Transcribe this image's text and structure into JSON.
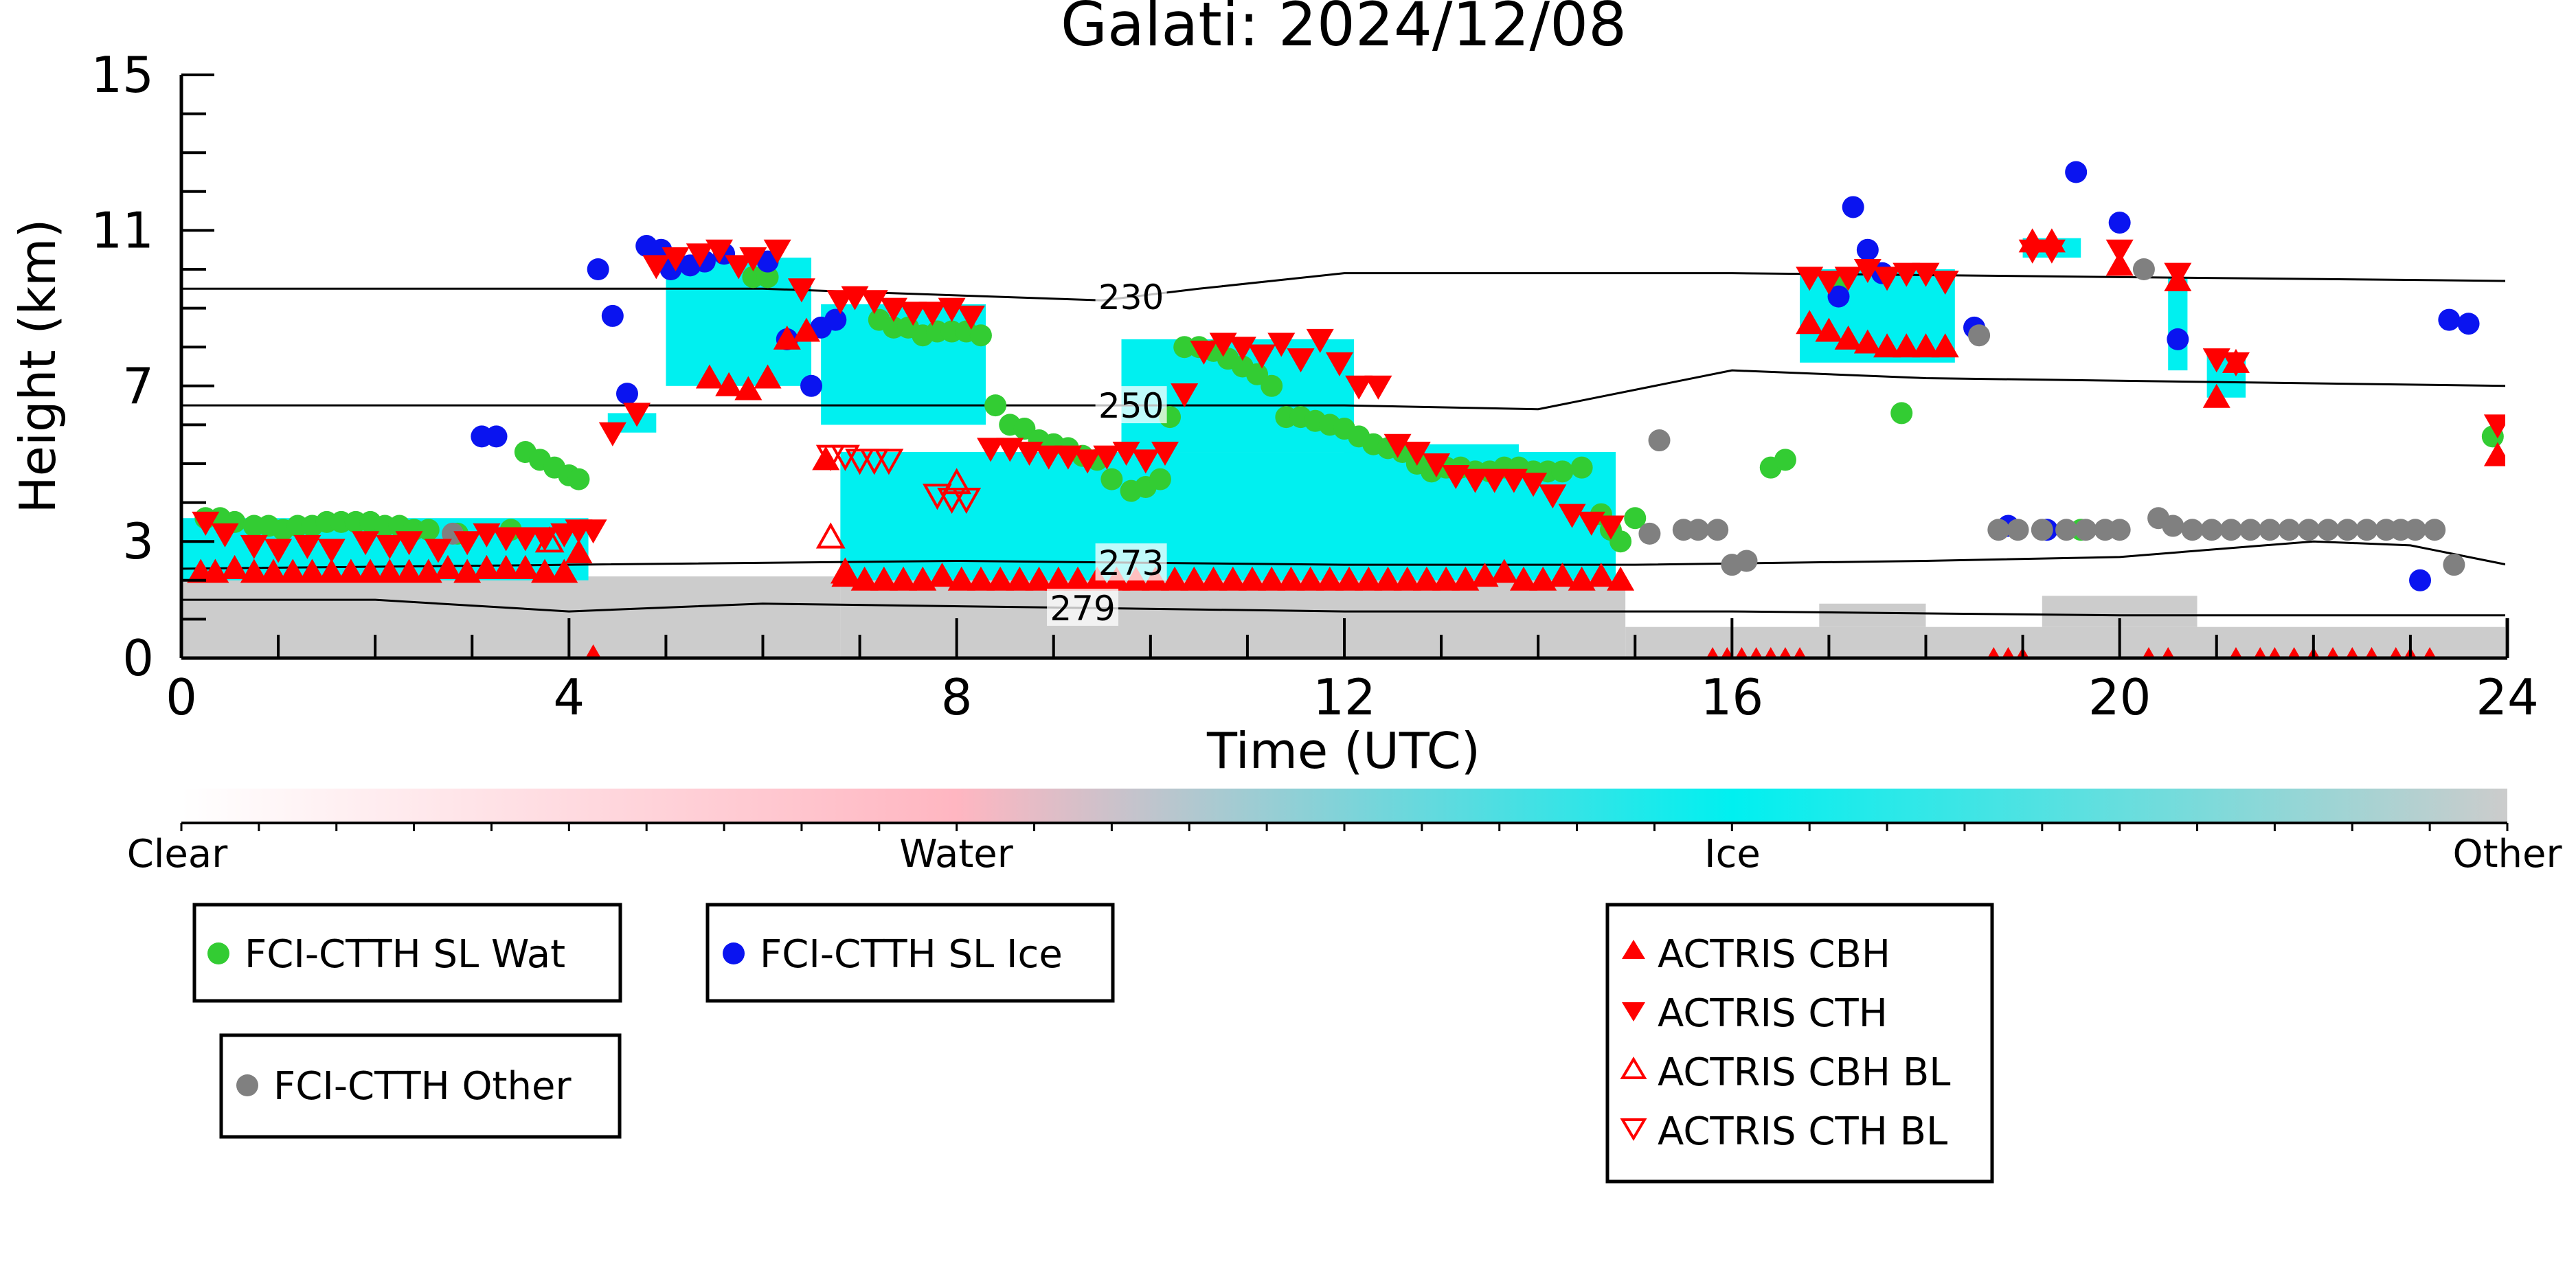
{
  "chart_data": {
    "type": "scatter",
    "title": "Galati: 2024/12/08",
    "xlabel": "Time (UTC)",
    "ylabel": "Height (km)",
    "xlim": [
      0,
      24
    ],
    "ylim": [
      0,
      15
    ],
    "x_ticks": [
      "0",
      "4",
      "8",
      "12",
      "16",
      "20",
      "24"
    ],
    "y_ticks": [
      "0",
      "3",
      "7",
      "11",
      "15"
    ],
    "isotherms": [
      {
        "label": "230",
        "x": [
          0,
          6,
          9.5,
          10.5,
          12,
          16,
          20,
          24
        ],
        "y": [
          9.5,
          9.5,
          9.2,
          9.5,
          9.9,
          9.9,
          9.8,
          9.7
        ],
        "label_at": 9.8
      },
      {
        "label": "250",
        "x": [
          0,
          6,
          9.5,
          12,
          14,
          16,
          18,
          24
        ],
        "y": [
          6.5,
          6.5,
          6.5,
          6.5,
          6.4,
          7.4,
          7.2,
          7.0
        ],
        "label_at": 9.8
      },
      {
        "label": "273",
        "x": [
          0,
          4,
          8,
          12,
          15,
          18,
          20,
          22,
          23,
          24
        ],
        "y": [
          2.3,
          2.4,
          2.5,
          2.4,
          2.4,
          2.5,
          2.6,
          3.0,
          2.9,
          2.4
        ],
        "label_at": 9.8
      },
      {
        "label": "279",
        "x": [
          0,
          2,
          4,
          6,
          9,
          12,
          16,
          20,
          24
        ],
        "y": [
          1.5,
          1.5,
          1.2,
          1.4,
          1.3,
          1.2,
          1.2,
          1.1,
          1.1
        ],
        "label_at": 9.3
      }
    ],
    "series": [
      {
        "name": "FCI-CTTH SL Wat",
        "color": "#33cc33",
        "marker": "circle",
        "x": [
          0.25,
          0.4,
          0.55,
          0.75,
          0.9,
          1.05,
          1.2,
          1.35,
          1.5,
          1.65,
          1.8,
          1.95,
          2.1,
          2.25,
          2.4,
          2.55,
          2.85,
          3.4,
          3.55,
          3.7,
          3.85,
          4.0,
          4.1,
          5.9,
          6.05,
          7.2,
          7.35,
          7.5,
          7.65,
          7.8,
          7.95,
          8.1,
          8.25,
          8.4,
          8.55,
          8.7,
          8.85,
          9.0,
          9.15,
          9.3,
          9.45,
          9.6,
          9.8,
          9.95,
          10.1,
          10.2,
          10.35,
          10.5,
          10.65,
          10.8,
          10.95,
          11.1,
          11.25,
          11.4,
          11.55,
          11.7,
          11.85,
          12.0,
          12.15,
          12.3,
          12.45,
          12.6,
          12.75,
          12.9,
          13.05,
          13.2,
          13.35,
          13.5,
          13.65,
          13.8,
          13.95,
          14.1,
          14.25,
          14.45,
          14.65,
          14.75,
          14.85,
          15.0,
          16.4,
          16.55,
          17.1,
          17.75,
          19.6,
          23.85
        ],
        "y": [
          3.6,
          3.6,
          3.5,
          3.4,
          3.4,
          3.3,
          3.4,
          3.4,
          3.5,
          3.5,
          3.5,
          3.5,
          3.4,
          3.4,
          3.3,
          3.3,
          3.2,
          3.3,
          5.3,
          5.1,
          4.9,
          4.7,
          4.6,
          9.8,
          9.8,
          8.7,
          8.5,
          8.5,
          8.3,
          8.4,
          8.4,
          8.4,
          8.3,
          6.5,
          6.0,
          5.9,
          5.6,
          5.5,
          5.4,
          5.2,
          5.1,
          4.6,
          4.3,
          4.4,
          4.6,
          6.2,
          8.0,
          8.0,
          7.9,
          7.7,
          7.5,
          7.3,
          7.0,
          6.2,
          6.2,
          6.1,
          6.0,
          5.9,
          5.7,
          5.5,
          5.4,
          5.3,
          5.0,
          4.8,
          4.9,
          4.9,
          4.8,
          4.8,
          4.9,
          4.9,
          4.8,
          4.8,
          4.8,
          4.9,
          3.7,
          3.3,
          3.0,
          3.6,
          4.9,
          5.1,
          9.6,
          6.3,
          3.3,
          5.7
        ]
      },
      {
        "name": "FCI-CTTH SL Ice",
        "color": "#0a14f0",
        "marker": "circle",
        "x": [
          3.1,
          3.25,
          4.3,
          4.45,
          4.6,
          4.8,
          4.95,
          5.05,
          5.25,
          5.4,
          5.6,
          6.05,
          6.25,
          6.5,
          6.6,
          6.75,
          17.1,
          17.25,
          17.4,
          17.55,
          18.5,
          18.85,
          19.25,
          19.55,
          20.0,
          20.6,
          23.1,
          23.4,
          23.6
        ],
        "y": [
          5.7,
          5.7,
          10.0,
          8.8,
          6.8,
          10.6,
          10.5,
          10.0,
          10.1,
          10.2,
          10.4,
          10.2,
          8.2,
          7.0,
          8.5,
          8.7,
          9.3,
          11.6,
          10.5,
          9.9,
          8.5,
          3.4,
          3.3,
          12.5,
          11.2,
          8.2,
          2.0,
          8.7,
          8.6
        ]
      },
      {
        "name": "FCI-CTTH Other",
        "color": "#808080",
        "marker": "circle",
        "x": [
          2.8,
          15.15,
          15.25,
          15.5,
          15.65,
          15.85,
          16.0,
          16.15,
          18.55,
          18.75,
          18.95,
          19.2,
          19.45,
          19.65,
          19.85,
          20.0,
          20.25,
          20.4,
          20.55,
          20.75,
          20.95,
          21.15,
          21.35,
          21.55,
          21.75,
          21.95,
          22.15,
          22.35,
          22.55,
          22.75,
          22.9,
          23.05,
          23.25,
          23.45
        ],
        "y": [
          3.2,
          3.2,
          5.6,
          3.3,
          3.3,
          3.3,
          2.4,
          2.5,
          8.3,
          3.3,
          3.3,
          3.3,
          3.3,
          3.3,
          3.3,
          3.3,
          10.0,
          3.6,
          3.4,
          3.3,
          3.3,
          3.3,
          3.3,
          3.3,
          3.3,
          3.3,
          3.3,
          3.3,
          3.3,
          3.3,
          3.3,
          3.3,
          3.3,
          2.4
        ]
      },
      {
        "name": "ACTRIS CBH",
        "color": "#ff0000",
        "marker": "triangle-up",
        "x": [
          0.2,
          0.35,
          0.55,
          0.75,
          0.95,
          1.15,
          1.35,
          1.55,
          1.75,
          1.95,
          2.15,
          2.35,
          2.55,
          2.75,
          2.95,
          3.15,
          3.35,
          3.55,
          3.75,
          3.95,
          4.1,
          4.25,
          5.45,
          5.65,
          5.85,
          6.05,
          6.25,
          6.45,
          6.65,
          6.85,
          7.05,
          7.25,
          7.45,
          7.65,
          7.85,
          8.05,
          8.25,
          8.45,
          8.65,
          8.85,
          9.05,
          9.25,
          9.45,
          9.65,
          9.85,
          10.05,
          10.25,
          10.45,
          10.65,
          10.85,
          11.05,
          11.25,
          11.45,
          11.65,
          11.85,
          12.05,
          12.25,
          12.45,
          12.65,
          12.85,
          13.05,
          13.25,
          13.45,
          13.65,
          13.85,
          14.05,
          14.25,
          14.45,
          14.65,
          14.85,
          16.8,
          17.0,
          17.2,
          17.4,
          17.6,
          17.8,
          18.0,
          18.2,
          19.1,
          19.3,
          20.0,
          20.6,
          21.0,
          21.2,
          23.9
        ],
        "y": [
          2.2,
          2.2,
          2.3,
          2.2,
          2.2,
          2.2,
          2.2,
          2.2,
          2.2,
          2.2,
          2.2,
          2.2,
          2.2,
          2.3,
          2.2,
          2.3,
          2.3,
          2.3,
          2.2,
          2.2,
          2.7,
          0.0,
          7.2,
          7.0,
          6.9,
          7.2,
          8.2,
          8.4,
          5.1,
          2.1,
          2.0,
          2.0,
          2.0,
          2.0,
          2.1,
          2.0,
          2.0,
          2.0,
          2.0,
          2.0,
          2.0,
          2.0,
          2.0,
          2.0,
          2.0,
          2.0,
          2.0,
          2.0,
          2.0,
          2.0,
          2.0,
          2.0,
          2.0,
          2.0,
          2.0,
          2.0,
          2.0,
          2.0,
          2.0,
          2.0,
          2.0,
          2.0,
          2.1,
          2.2,
          2.0,
          2.0,
          2.1,
          2.0,
          2.1,
          2.0,
          8.6,
          8.4,
          8.2,
          8.1,
          8.0,
          8.0,
          8.0,
          8.0,
          10.7,
          10.7,
          10.1,
          9.7,
          6.7,
          7.6,
          5.2
        ],
        "x_near_zero": [
          15.8,
          15.95,
          16.1,
          16.25,
          16.4,
          16.55,
          16.7,
          18.7,
          18.85,
          19.0,
          20.3,
          20.5,
          21.2,
          21.45,
          21.6,
          21.8,
          22.0,
          22.2,
          22.4,
          22.6,
          22.85,
          23.0,
          23.2
        ]
      },
      {
        "name": "ACTRIS CTH",
        "color": "#ff0000",
        "marker": "triangle-down",
        "x": [
          0.25,
          0.45,
          0.75,
          1.0,
          1.3,
          1.55,
          1.9,
          2.15,
          2.35,
          2.65,
          2.95,
          3.15,
          3.35,
          3.55,
          3.75,
          3.95,
          4.1,
          4.25,
          4.45,
          4.7,
          4.9,
          5.1,
          5.35,
          5.55,
          5.75,
          5.9,
          6.15,
          6.4,
          6.8,
          6.95,
          7.15,
          7.35,
          7.55,
          7.75,
          7.95,
          8.15,
          8.35,
          8.55,
          8.75,
          8.95,
          9.15,
          9.35,
          9.55,
          9.75,
          9.95,
          10.15,
          10.35,
          10.55,
          10.75,
          10.95,
          11.15,
          11.35,
          11.55,
          11.75,
          11.95,
          12.15,
          12.35,
          12.55,
          12.75,
          12.95,
          13.15,
          13.35,
          13.55,
          13.75,
          13.95,
          14.15,
          14.35,
          14.55,
          14.75,
          16.8,
          17.0,
          17.2,
          17.4,
          17.6,
          17.8,
          18.0,
          18.2,
          19.1,
          19.3,
          20.0,
          20.6,
          21.0,
          21.2,
          23.9
        ],
        "y": [
          3.5,
          3.2,
          2.9,
          2.8,
          2.9,
          2.8,
          3.0,
          2.9,
          3.0,
          2.8,
          3.0,
          3.2,
          3.1,
          3.1,
          3.1,
          3.2,
          3.3,
          3.3,
          5.8,
          6.3,
          10.1,
          10.3,
          10.4,
          10.5,
          10.1,
          10.3,
          10.5,
          9.5,
          9.2,
          9.3,
          9.2,
          9.0,
          8.9,
          8.9,
          9.0,
          8.8,
          5.4,
          5.4,
          5.3,
          5.2,
          5.2,
          5.1,
          5.2,
          5.3,
          5.1,
          5.3,
          6.8,
          7.9,
          8.1,
          8.0,
          7.8,
          8.1,
          7.7,
          8.2,
          7.6,
          7.0,
          7.0,
          5.5,
          5.3,
          5.0,
          4.7,
          4.6,
          4.6,
          4.6,
          4.5,
          4.2,
          3.7,
          3.5,
          3.4,
          9.8,
          9.7,
          9.8,
          10.0,
          9.8,
          9.9,
          9.9,
          9.7,
          10.5,
          10.5,
          10.5,
          9.9,
          7.7,
          7.6,
          6.0
        ]
      },
      {
        "name": "ACTRIS CBH BL",
        "color": "#ff0000",
        "marker": "triangle-up-open",
        "x": [
          3.8,
          6.7,
          6.85,
          8.0
        ],
        "y": [
          3.0,
          3.1,
          2.2,
          4.5
        ]
      },
      {
        "name": "ACTRIS CTH BL",
        "color": "#ff0000",
        "marker": "triangle-down-open",
        "x": [
          6.7,
          6.85,
          7.0,
          7.15,
          7.3,
          7.8,
          7.95,
          8.1
        ],
        "y": [
          5.2,
          5.2,
          5.1,
          5.1,
          5.1,
          4.2,
          4.1,
          4.1
        ]
      }
    ],
    "colorbar": {
      "labels": [
        "Clear",
        "Water",
        "Ice",
        "Other"
      ],
      "colors": {
        "clear": "#ffffff",
        "water": "#ffb6c1",
        "ice": "#00f0f0",
        "other": "#cccccc"
      }
    },
    "legend_boxes": [
      {
        "id": "wat",
        "entries": [
          {
            "label": "FCI-CTTH SL Wat",
            "marker": "circle",
            "color": "#33cc33"
          }
        ]
      },
      {
        "id": "ice",
        "entries": [
          {
            "label": "FCI-CTTH SL Ice",
            "marker": "circle",
            "color": "#0a14f0"
          }
        ]
      },
      {
        "id": "other",
        "entries": [
          {
            "label": "FCI-CTTH Other",
            "marker": "circle",
            "color": "#808080"
          }
        ]
      },
      {
        "id": "actris",
        "entries": [
          {
            "label": "ACTRIS CBH",
            "marker": "triangle-up",
            "color": "#ff0000"
          },
          {
            "label": "ACTRIS CTH",
            "marker": "triangle-down",
            "color": "#ff0000"
          },
          {
            "label": "ACTRIS CBH BL",
            "marker": "triangle-up-open",
            "color": "#ff0000"
          },
          {
            "label": "ACTRIS CTH BL",
            "marker": "triangle-down-open",
            "color": "#ff0000"
          }
        ]
      }
    ],
    "background_fill": {
      "ice_regions": [
        {
          "x0": 0.0,
          "x1": 4.2,
          "y0": 2.0,
          "y1": 3.6
        },
        {
          "x0": 4.4,
          "x1": 4.9,
          "y0": 5.8,
          "y1": 6.3
        },
        {
          "x0": 5.0,
          "x1": 6.5,
          "y0": 7.0,
          "y1": 10.3
        },
        {
          "x0": 6.6,
          "x1": 8.3,
          "y0": 6.0,
          "y1": 9.1
        },
        {
          "x0": 6.8,
          "x1": 14.8,
          "y0": 2.0,
          "y1": 5.3
        },
        {
          "x0": 9.7,
          "x1": 12.1,
          "y0": 5.3,
          "y1": 8.2
        },
        {
          "x0": 12.0,
          "x1": 13.8,
          "y0": 4.5,
          "y1": 5.5
        },
        {
          "x0": 16.7,
          "x1": 18.3,
          "y0": 7.6,
          "y1": 10.0
        },
        {
          "x0": 19.0,
          "x1": 19.6,
          "y0": 10.3,
          "y1": 10.8
        },
        {
          "x0": 20.5,
          "x1": 20.7,
          "y0": 7.4,
          "y1": 9.8
        },
        {
          "x0": 20.9,
          "x1": 21.3,
          "y0": 6.7,
          "y1": 7.8
        }
      ],
      "other_regions": [
        {
          "x0": 0.0,
          "x1": 6.8,
          "y0": 0.0,
          "y1": 2.1
        },
        {
          "x0": 6.8,
          "x1": 14.9,
          "y0": 0.0,
          "y1": 2.0
        },
        {
          "x0": 14.9,
          "x1": 24.0,
          "y0": 0.0,
          "y1": 0.8
        },
        {
          "x0": 16.9,
          "x1": 18.0,
          "y0": 0.8,
          "y1": 1.4
        },
        {
          "x0": 19.2,
          "x1": 20.8,
          "y0": 0.8,
          "y1": 1.6
        }
      ]
    }
  }
}
